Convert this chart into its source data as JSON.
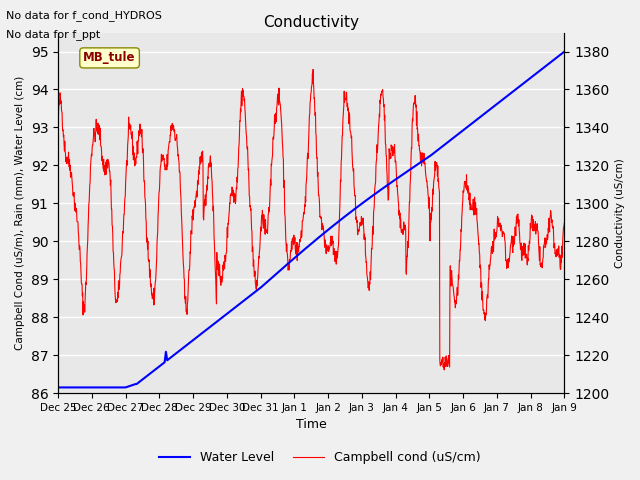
{
  "title": "Conductivity",
  "ylabel_left": "Campbell Cond (uS/m), Rain (mm), Water Level (cm)",
  "ylabel_right": "Conductivity (uS/cm)",
  "xlabel": "Time",
  "ylim_left": [
    86.0,
    95.5
  ],
  "ylim_right": [
    1200,
    1390
  ],
  "yticks_left": [
    86.0,
    87.0,
    88.0,
    89.0,
    90.0,
    91.0,
    92.0,
    93.0,
    94.0,
    95.0
  ],
  "yticks_right": [
    1200,
    1220,
    1240,
    1260,
    1280,
    1300,
    1320,
    1340,
    1360,
    1380
  ],
  "annotations": [
    "No data for f_cond_HYDROS",
    "No data for f_ppt"
  ],
  "annotation_box_label": "MB_tule",
  "background_color": "#f0f0f0",
  "plot_bg_color": "#e8e8e8",
  "grid_color": "white",
  "water_level_color": "blue",
  "campbell_color": "red",
  "legend_entries": [
    "Water Level",
    "Campbell cond (uS/cm)"
  ],
  "xtick_labels": [
    "Dec 25",
    "Dec 26",
    "Dec 27",
    "Dec 28",
    "Dec 29",
    "Dec 30",
    "Dec 31",
    "Jan 1",
    "Jan 2",
    "Jan 3",
    "Jan 4",
    "Jan 5",
    "Jan 6",
    "Jan 7",
    "Jan 8",
    "Jan 9"
  ]
}
